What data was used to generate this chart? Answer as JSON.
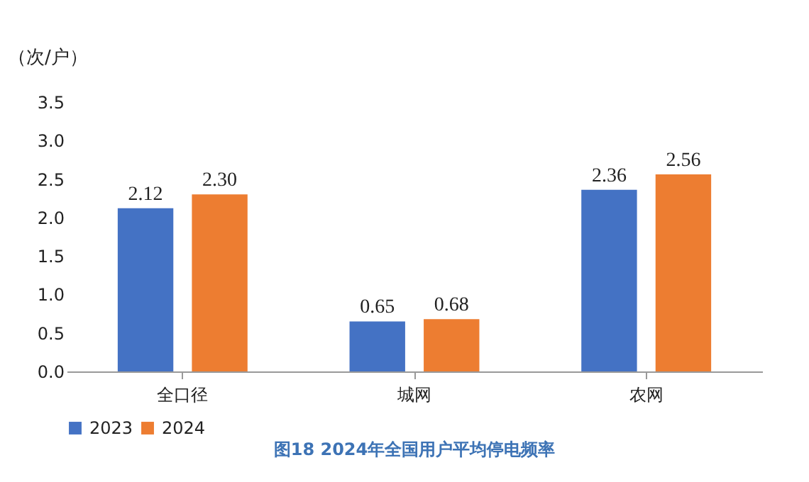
{
  "chart_data": {
    "type": "bar",
    "title": "图18  2024年全国用户平均停电频率",
    "ylabel": "（次/户）",
    "categories": [
      "全口径",
      "城网",
      "农网"
    ],
    "series": [
      {
        "name": "2023",
        "color": "#4472c4",
        "values": [
          2.12,
          0.65,
          2.36
        ],
        "value_labels": [
          "2.12",
          "0.65",
          "2.36"
        ]
      },
      {
        "name": "2024",
        "color": "#ed7d31",
        "values": [
          2.3,
          0.68,
          2.56
        ],
        "value_labels": [
          "2.30",
          "0.68",
          "2.56"
        ]
      }
    ],
    "ylim": [
      0,
      3.5
    ],
    "yticks": [
      {
        "value": 0,
        "label": "0.0"
      },
      {
        "value": 0.5,
        "label": "0.5"
      },
      {
        "value": 1,
        "label": "1.0"
      },
      {
        "value": 1.5,
        "label": "1.5"
      },
      {
        "value": 2,
        "label": "2.0"
      },
      {
        "value": 2.5,
        "label": "2.5"
      },
      {
        "value": 3,
        "label": "3.0"
      },
      {
        "value": 3.5,
        "label": "3.5"
      }
    ],
    "grid": false,
    "legend": "bottom"
  }
}
